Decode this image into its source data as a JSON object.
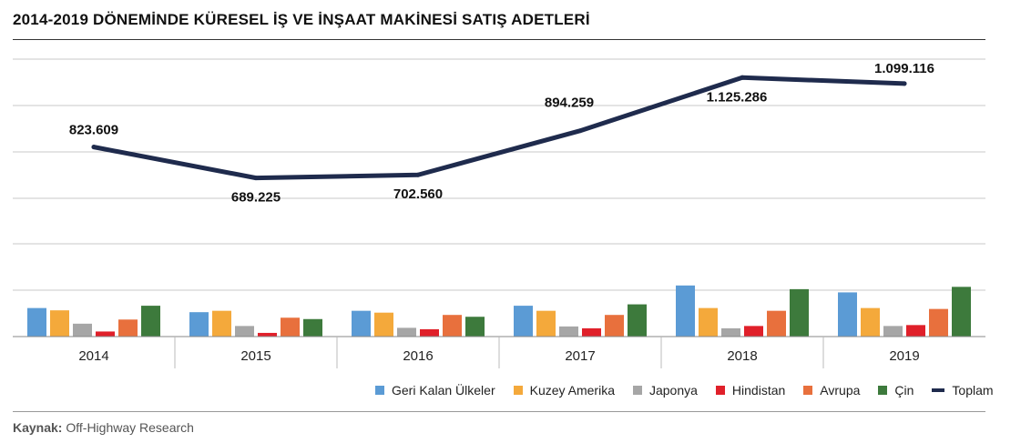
{
  "title": "2014-2019 DÖNEMİNDE KÜRESEL İŞ VE İNŞAAT MAKİNESİ SATIŞ ADETLERİ",
  "source": {
    "label": "Kaynak:",
    "text": "Off-Highway Research"
  },
  "colors": {
    "Geri Kalan Ülkeler": "#5b9bd5",
    "Kuzey Amerika": "#f4a93b",
    "Japonya": "#a6a6a6",
    "Hindistan": "#e0202a",
    "Avrupa": "#e8703d",
    "Çin": "#3d7a3c",
    "Toplam": "#1f2b4d"
  },
  "legend": [
    {
      "label": "Geri Kalan Ülkeler",
      "icon": "square"
    },
    {
      "label": "Kuzey Amerika",
      "icon": "square"
    },
    {
      "label": "Japonya",
      "icon": "square"
    },
    {
      "label": "Hindistan",
      "icon": "square"
    },
    {
      "label": "Avrupa",
      "icon": "square"
    },
    {
      "label": "Çin",
      "icon": "square"
    },
    {
      "label": "Toplam",
      "icon": "line"
    }
  ],
  "chart_data": {
    "type": "bar",
    "title": "2014-2019 DÖNEMİNDE KÜRESEL İŞ VE İNŞAAT MAKİNESİ SATIŞ ADETLERİ",
    "categories": [
      "2014",
      "2015",
      "2016",
      "2017",
      "2018",
      "2019"
    ],
    "grid": true,
    "legend_position": "bottom-right",
    "ylim": [
      0,
      1250000
    ],
    "series": [
      {
        "name": "Geri Kalan Ülkeler",
        "type": "bar",
        "values": [
          124000,
          106000,
          112000,
          134000,
          222000,
          192000
        ]
      },
      {
        "name": "Kuzey Amerika",
        "type": "bar",
        "values": [
          114000,
          112000,
          104000,
          112000,
          124000,
          124000
        ]
      },
      {
        "name": "Japonya",
        "type": "bar",
        "values": [
          56000,
          46000,
          38000,
          44000,
          36000,
          46000
        ]
      },
      {
        "name": "Hindistan",
        "type": "bar",
        "values": [
          22000,
          16000,
          32000,
          36000,
          46000,
          50000
        ]
      },
      {
        "name": "Avrupa",
        "type": "bar",
        "values": [
          74000,
          82000,
          94000,
          94000,
          112000,
          120000
        ]
      },
      {
        "name": "Çin",
        "type": "bar",
        "values": [
          134000,
          76000,
          86000,
          140000,
          206000,
          216000
        ]
      },
      {
        "name": "Toplam",
        "type": "line",
        "values": [
          823609,
          689225,
          702560,
          894259,
          1125286,
          1099116
        ],
        "labels": [
          "823.609",
          "689.225",
          "702.560",
          "894.259",
          "1.125.286",
          "1.099.116"
        ]
      }
    ]
  }
}
